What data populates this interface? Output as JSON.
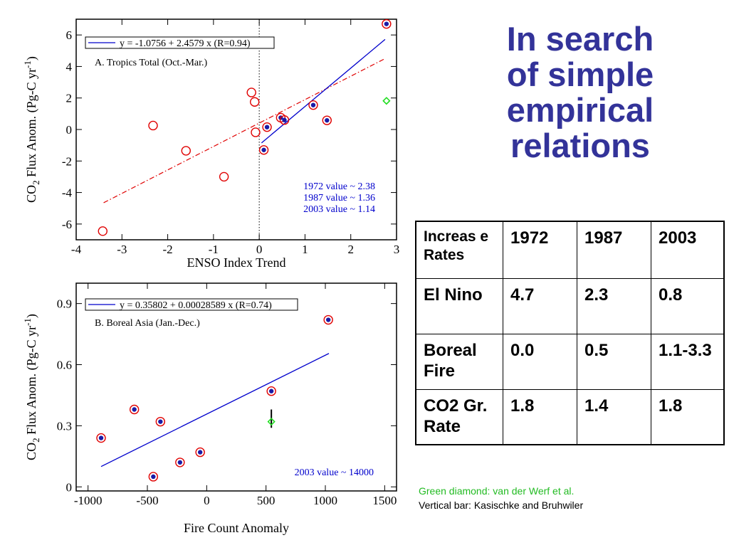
{
  "title": [
    "In search",
    "of simple",
    "empirical",
    "relations"
  ],
  "chart_data": [
    {
      "type": "scatter",
      "xlabel": "ENSO Index Trend",
      "ylabel_parts": {
        "a": "CO",
        "sub": "2",
        "b": " Flux Anom. (Pg-C yr",
        "sup": "-1",
        "c": ")"
      },
      "xlim": [
        -4,
        3
      ],
      "ylim": [
        -7,
        7
      ],
      "xticks": [
        -4,
        -3,
        -2,
        -1,
        0,
        1,
        2,
        3
      ],
      "yticks": [
        -6,
        -4,
        -2,
        0,
        2,
        4,
        6
      ],
      "legend": "y =  -1.0756 + 2.4579 x (R=0.94)",
      "panel_label": "A. Tropics Total (Oct.-Mar.)",
      "annotations": [
        "1972 value ~ 2.38",
        "1987 value ~ 1.36",
        "2003 value ~ 1.14"
      ],
      "open_points": [
        {
          "x": -3.42,
          "y": -6.45
        },
        {
          "x": -2.32,
          "y": 0.25
        },
        {
          "x": -1.6,
          "y": -1.35
        },
        {
          "x": -0.77,
          "y": -3.0
        },
        {
          "x": -0.17,
          "y": 2.35
        },
        {
          "x": -0.1,
          "y": 1.75
        },
        {
          "x": -0.08,
          "y": -0.18
        }
      ],
      "filled_points": [
        {
          "x": 0.1,
          "y": -1.3
        },
        {
          "x": 0.17,
          "y": 0.15
        },
        {
          "x": 0.47,
          "y": 0.75
        },
        {
          "x": 0.55,
          "y": 0.6
        },
        {
          "x": 1.18,
          "y": 1.55
        },
        {
          "x": 1.48,
          "y": 0.58
        },
        {
          "x": 2.78,
          "y": 6.7
        }
      ],
      "diamonds": [
        {
          "x": 2.78,
          "y": 1.82
        }
      ],
      "fit_line": {
        "x": [
          0.05,
          2.75
        ],
        "y": [
          -0.85,
          5.72
        ]
      },
      "dashdot_line": {
        "x": [
          -3.4,
          2.75
        ],
        "y": [
          -4.65,
          4.5
        ]
      },
      "zero_line_x": 0,
      "colors": {
        "open": "#e00000",
        "filled_ring": "#e00000",
        "filled_dot": "#1a1aa6",
        "fit": "#0000cc",
        "dashdot": "#e00000",
        "diamond": "#22dd22",
        "annotation": "#0000cc"
      }
    },
    {
      "type": "scatter",
      "xlabel": "Fire Count Anomaly",
      "ylabel_parts": {
        "a": "CO",
        "sub": "2",
        "b": " Flux Anom. (Pg-C yr",
        "sup": "-1",
        "c": ")"
      },
      "xlim": [
        -1100,
        1600
      ],
      "ylim": [
        -0.02,
        1.0
      ],
      "xticks": [
        -1000,
        -500,
        0,
        500,
        1000,
        1500
      ],
      "yticks": [
        0,
        0.3,
        0.6,
        0.9
      ],
      "legend": "y = 0.35802 + 0.00028589 x (R=0.74)",
      "panel_label": "B. Boreal Asia (Jan.-Dec.)",
      "annotations": [
        "2003 value ~ 14000"
      ],
      "filled_points": [
        {
          "x": -890,
          "y": 0.24
        },
        {
          "x": -610,
          "y": 0.38
        },
        {
          "x": -450,
          "y": 0.05
        },
        {
          "x": -390,
          "y": 0.32
        },
        {
          "x": -225,
          "y": 0.12
        },
        {
          "x": -55,
          "y": 0.17
        },
        {
          "x": 545,
          "y": 0.47
        },
        {
          "x": 1025,
          "y": 0.82
        }
      ],
      "diamonds": [
        {
          "x": 545,
          "y": 0.32
        }
      ],
      "error_bar": {
        "x": 545,
        "y_low": 0.29,
        "y_high": 0.38
      },
      "fit_line": {
        "x": [
          -890,
          1030
        ],
        "y": [
          0.1,
          0.655
        ]
      },
      "colors": {
        "filled_ring": "#e00000",
        "filled_dot": "#1a1aa6",
        "fit": "#0000cc",
        "diamond": "#22dd22",
        "annotation": "#0000cc"
      }
    }
  ],
  "table": {
    "header": [
      "Increas e Rates",
      "1972",
      "1987",
      "2003"
    ],
    "rows": [
      [
        "El Nino",
        "4.7",
        "2.3",
        "0.8"
      ],
      [
        "Boreal Fire",
        "0.0",
        "0.5",
        "1.1-3.3"
      ],
      [
        "CO2 Gr. Rate",
        "1.8",
        "1.4",
        "1.8"
      ]
    ]
  },
  "notes": {
    "green": "Green diamond: van der Werf et al.",
    "black": "Vertical bar: Kasischke and Bruhwiler",
    "green_color": "#22bb22"
  }
}
